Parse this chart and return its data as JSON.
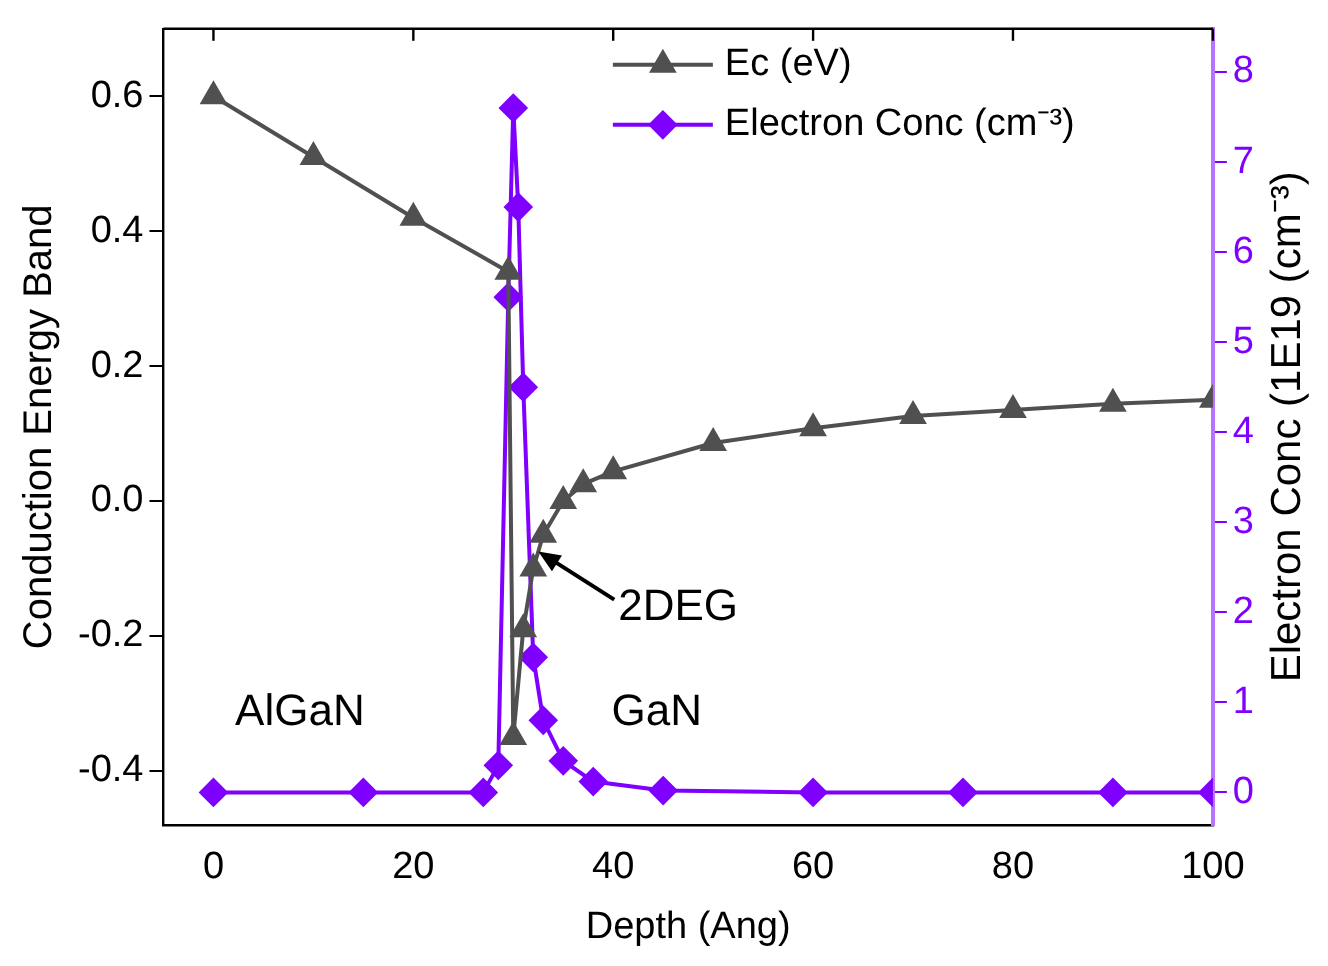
{
  "chart_data": {
    "type": "line",
    "xlabel": "Depth (Ang)",
    "ylabel": "Conduction Energy Band",
    "y2label": "Electron Conc (1E19 (cm⁻³)",
    "xlim": [
      -5,
      100
    ],
    "xticks": [
      0,
      20,
      40,
      60,
      80,
      100
    ],
    "ylim": [
      -0.48,
      0.7
    ],
    "yticks": [
      {
        "value": -0.4,
        "label": "-0.4"
      },
      {
        "value": -0.2,
        "label": "-0.2"
      },
      {
        "value": 0,
        "label": "0.0"
      },
      {
        "value": 0.2,
        "label": "0.2"
      },
      {
        "value": 0.4,
        "label": "0.4"
      },
      {
        "value": 0.6,
        "label": "0.6"
      }
    ],
    "y2lim": [
      -0.36,
      8.48
    ],
    "y2ticks": [
      0,
      1,
      2,
      3,
      4,
      5,
      6,
      7,
      8
    ],
    "legend": "top right",
    "grid": false,
    "line_style": "solid",
    "series": [
      {
        "name": "Ec (eV)",
        "color": "#505050",
        "marker": "triangle",
        "x": [
          0,
          10,
          20,
          29.5,
          30,
          31,
          32,
          33,
          35,
          37,
          40,
          50,
          60,
          70,
          80,
          90,
          100
        ],
        "values": [
          0.6,
          0.51,
          0.42,
          0.34,
          -0.35,
          -0.19,
          -0.1,
          -0.05,
          0.0,
          0.025,
          0.044,
          0.086,
          0.108,
          0.126,
          0.135,
          0.144,
          0.15
        ]
      },
      {
        "name": "Electron Conc (cm⁻³)",
        "color": "#7f00ff",
        "marker": "diamond",
        "axis": "y2",
        "x": [
          0,
          15,
          27,
          28.5,
          29.5,
          30,
          30.5,
          31,
          32,
          33,
          35,
          38,
          45,
          60,
          75,
          90,
          100
        ],
        "values": [
          0,
          0,
          0,
          0.3,
          5.5,
          7.6,
          6.5,
          4.5,
          1.5,
          0.8,
          0.35,
          0.12,
          0.02,
          0,
          0,
          0,
          0
        ]
      }
    ],
    "annotations": [
      "AlGaN",
      "GaN",
      {
        "text": "2DEG",
        "x": 32.5,
        "y": -0.075
      }
    ]
  }
}
